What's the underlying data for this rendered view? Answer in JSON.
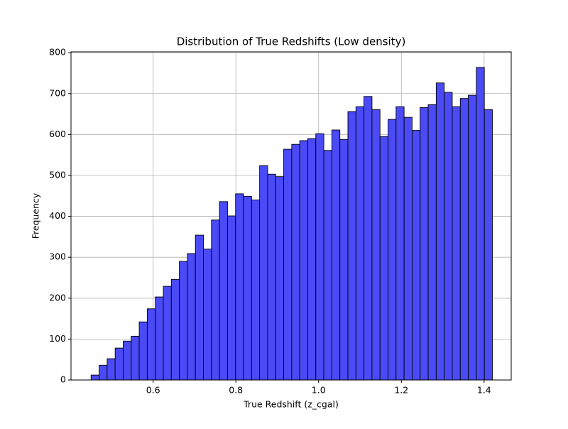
{
  "chart_data": {
    "type": "histogram",
    "title": "Distribution of True Redshifts (Low density)",
    "xlabel": "True Redshift (z_cgal)",
    "ylabel": "Frequency",
    "bins": [
      0.45,
      0.4694,
      0.4888,
      0.5082,
      0.5276,
      0.547,
      0.5664,
      0.5858,
      0.6052,
      0.6246,
      0.644,
      0.6634,
      0.6828,
      0.7022,
      0.7216,
      0.741,
      0.7604,
      0.7798,
      0.7992,
      0.8186,
      0.838,
      0.8574,
      0.8768,
      0.8962,
      0.9156,
      0.935,
      0.9544,
      0.9738,
      0.9932,
      1.0126,
      1.032,
      1.0514,
      1.0708,
      1.0902,
      1.1096,
      1.129,
      1.1484,
      1.1678,
      1.1872,
      1.2066,
      1.226,
      1.2454,
      1.2648,
      1.2842,
      1.3036,
      1.323,
      1.3424,
      1.3618,
      1.3812,
      1.4006,
      1.42
    ],
    "counts": [
      12,
      36,
      52,
      78,
      95,
      107,
      142,
      174,
      203,
      229,
      246,
      290,
      309,
      354,
      320,
      391,
      436,
      401,
      455,
      449,
      440,
      524,
      503,
      497,
      564,
      576,
      585,
      590,
      602,
      561,
      611,
      588,
      656,
      668,
      693,
      661,
      595,
      637,
      668,
      642,
      610,
      666,
      673,
      726,
      703,
      668,
      688,
      696,
      764,
      661
    ],
    "color": "#4a4af6",
    "edgecolor": "#000000",
    "xlim": [
      0.4015,
      1.4655
    ],
    "ylim": [
      0,
      802
    ],
    "xticks": [
      0.6,
      0.8,
      {
        "value": 1.0,
        "label": "1.0"
      },
      1.2,
      1.4
    ],
    "yticks": [
      0,
      100,
      200,
      300,
      400,
      500,
      600,
      700,
      800
    ],
    "grid": true
  }
}
